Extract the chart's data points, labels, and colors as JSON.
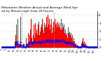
{
  "title": "Milwaukee Weather Actual and Average Wind Speed by Minute mph (Last 24 Hours)",
  "title_fontsize": 3.2,
  "bg_color": "#ffffff",
  "plot_bg_color": "#ffffff",
  "bar_color": "#ff0000",
  "avg_color": "#0000ff",
  "ylim": [
    0,
    4.5
  ],
  "yticks": [
    0,
    1,
    2,
    3,
    4
  ],
  "n_points": 144,
  "vline_positions": [
    30,
    78
  ],
  "vline_color": "#999999",
  "hline_y": 0.08,
  "hline_color": "#0000cc",
  "actual": [
    0.0,
    0.0,
    0.0,
    0.0,
    0.0,
    0.0,
    0.0,
    0.0,
    0.0,
    0.0,
    0.1,
    0.1,
    0.0,
    0.0,
    0.0,
    0.1,
    0.0,
    0.2,
    0.1,
    0.0,
    0.8,
    1.5,
    2.8,
    0.5,
    3.5,
    0.3,
    0.0,
    0.5,
    3.8,
    0.2,
    0.1,
    0.0,
    0.3,
    0.5,
    0.0,
    0.0,
    0.2,
    1.2,
    0.5,
    0.2,
    1.8,
    0.8,
    1.5,
    2.2,
    3.5,
    1.2,
    0.8,
    1.5,
    2.8,
    1.2,
    2.5,
    3.0,
    1.8,
    2.2,
    1.5,
    2.8,
    3.2,
    1.5,
    2.0,
    2.5,
    2.8,
    3.5,
    2.2,
    1.8,
    3.0,
    2.5,
    2.8,
    3.8,
    2.5,
    4.0,
    3.2,
    2.8,
    3.5,
    2.2,
    2.8,
    3.5,
    1.8,
    2.5,
    3.2,
    2.0,
    3.5,
    2.8,
    3.0,
    2.5,
    3.2,
    2.8,
    2.5,
    3.0,
    2.2,
    2.8,
    3.5,
    2.2,
    3.0,
    2.5,
    2.8,
    1.8,
    2.2,
    1.5,
    1.8,
    1.2,
    2.5,
    1.8,
    2.0,
    1.5,
    1.8,
    1.2,
    1.5,
    0.8,
    1.2,
    0.5,
    0.8,
    0.3,
    0.5,
    0.2,
    0.3,
    0.1,
    0.0,
    0.1,
    0.2,
    0.1,
    0.5,
    0.8,
    1.2,
    0.5,
    0.8,
    0.3,
    0.5,
    0.2,
    0.3,
    0.1,
    0.2,
    0.1,
    0.0,
    0.0,
    0.1,
    0.0,
    0.0,
    0.0,
    0.0,
    0.0,
    0.1,
    0.0,
    0.0,
    0.0
  ],
  "avg": [
    0.05,
    0.05,
    0.05,
    0.05,
    0.05,
    0.05,
    0.05,
    0.05,
    0.05,
    0.05,
    0.08,
    0.08,
    0.05,
    0.05,
    0.05,
    0.08,
    0.05,
    0.1,
    0.08,
    0.05,
    0.3,
    0.5,
    0.7,
    0.5,
    0.8,
    0.4,
    0.2,
    0.3,
    0.7,
    0.3,
    0.2,
    0.1,
    0.2,
    0.3,
    0.1,
    0.1,
    0.2,
    0.4,
    0.3,
    0.2,
    0.6,
    0.5,
    0.6,
    0.7,
    0.9,
    0.6,
    0.5,
    0.6,
    0.8,
    0.6,
    0.7,
    0.8,
    0.7,
    0.7,
    0.6,
    0.8,
    0.8,
    0.6,
    0.7,
    0.7,
    0.8,
    0.9,
    0.7,
    0.7,
    0.8,
    0.8,
    0.8,
    0.9,
    0.8,
    0.9,
    0.9,
    0.8,
    0.9,
    0.8,
    0.8,
    0.9,
    0.7,
    0.8,
    0.9,
    0.7,
    0.9,
    0.8,
    0.9,
    0.8,
    0.9,
    0.8,
    0.8,
    0.9,
    0.8,
    0.8,
    0.9,
    0.8,
    0.9,
    0.8,
    0.8,
    0.7,
    0.7,
    0.6,
    0.7,
    0.5,
    0.7,
    0.6,
    0.7,
    0.5,
    0.6,
    0.5,
    0.5,
    0.4,
    0.4,
    0.3,
    0.3,
    0.2,
    0.2,
    0.1,
    0.2,
    0.1,
    0.05,
    0.08,
    0.1,
    0.08,
    0.2,
    0.3,
    0.4,
    0.2,
    0.3,
    0.2,
    0.2,
    0.1,
    0.2,
    0.08,
    0.1,
    0.08,
    0.05,
    0.05,
    0.08,
    0.05,
    0.05,
    0.05,
    0.05,
    0.05,
    0.08,
    0.05,
    0.05,
    0.05
  ]
}
